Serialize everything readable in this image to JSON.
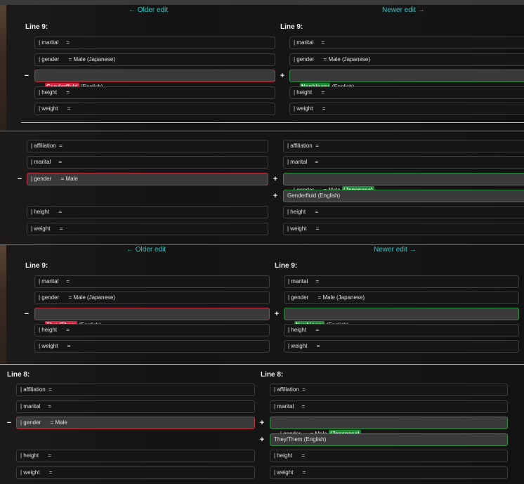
{
  "nav": {
    "older": "← Older edit",
    "newer": "Newer edit →"
  },
  "sign": {
    "minus": "−",
    "plus": "+"
  },
  "p1": {
    "left_label": "Line 9:",
    "right_label": "Line 9:",
    "left": {
      "r1": "| marital     =",
      "r2": "| gender      = Male (Japanese)",
      "del_hl": "Genderfluid",
      "del_rest": " (English)",
      "r4": "| height      =",
      "r5": "| weight      ="
    },
    "right": {
      "r1": "| marital     =",
      "r2": "| gender      = Male (Japanese)",
      "add_hl": "Nonbinary",
      "add_rest": " (English)",
      "r4": "| height      =",
      "r5": "| weight      ="
    }
  },
  "p2": {
    "left": {
      "r1": "| affiliation  =",
      "r2": "| marital     =",
      "del": "| gender      = Male",
      "r4": "| height      =",
      "r5": "| weight      ="
    },
    "right": {
      "r1": "| affiliation  =",
      "r2": "| marital     =",
      "g_pre": "| gender      = Male ",
      "g_hl": "(Japanese)",
      "new_line": "Genderfluid (English)",
      "r4": "| height      =",
      "r5": "| weight      ="
    }
  },
  "p3": {
    "left_label": "Line 9:",
    "right_label": "Line 9:",
    "left": {
      "r1": "| marital     =",
      "r2": "| gender      = Male (Japanese)",
      "del_hl": "They/Them",
      "del_rest": " (English)",
      "r4": "| height      =",
      "r5": "| weight      ="
    },
    "right": {
      "r1": "| marital     =",
      "r2": "| gender      = Male (Japanese)",
      "add_hl": "Nonbinary",
      "add_rest": " (English)",
      "r4": "| height      =",
      "r5": "| weight      ="
    }
  },
  "p4": {
    "left_label": "Line 8:",
    "right_label": "Line 8:",
    "left": {
      "r1": "| affiliation  =",
      "r2": "| marital     =",
      "del": "| gender      = Male",
      "r4": "| height      =",
      "r5": "| weight      ="
    },
    "right": {
      "r1": "| affiliation  =",
      "r2": "| marital     =",
      "g_pre": "| gender      = Male ",
      "g_hl": "(Japanese)",
      "new_line": "They/Them (English)",
      "r4": "| height      =",
      "r5": "| weight      ="
    }
  }
}
